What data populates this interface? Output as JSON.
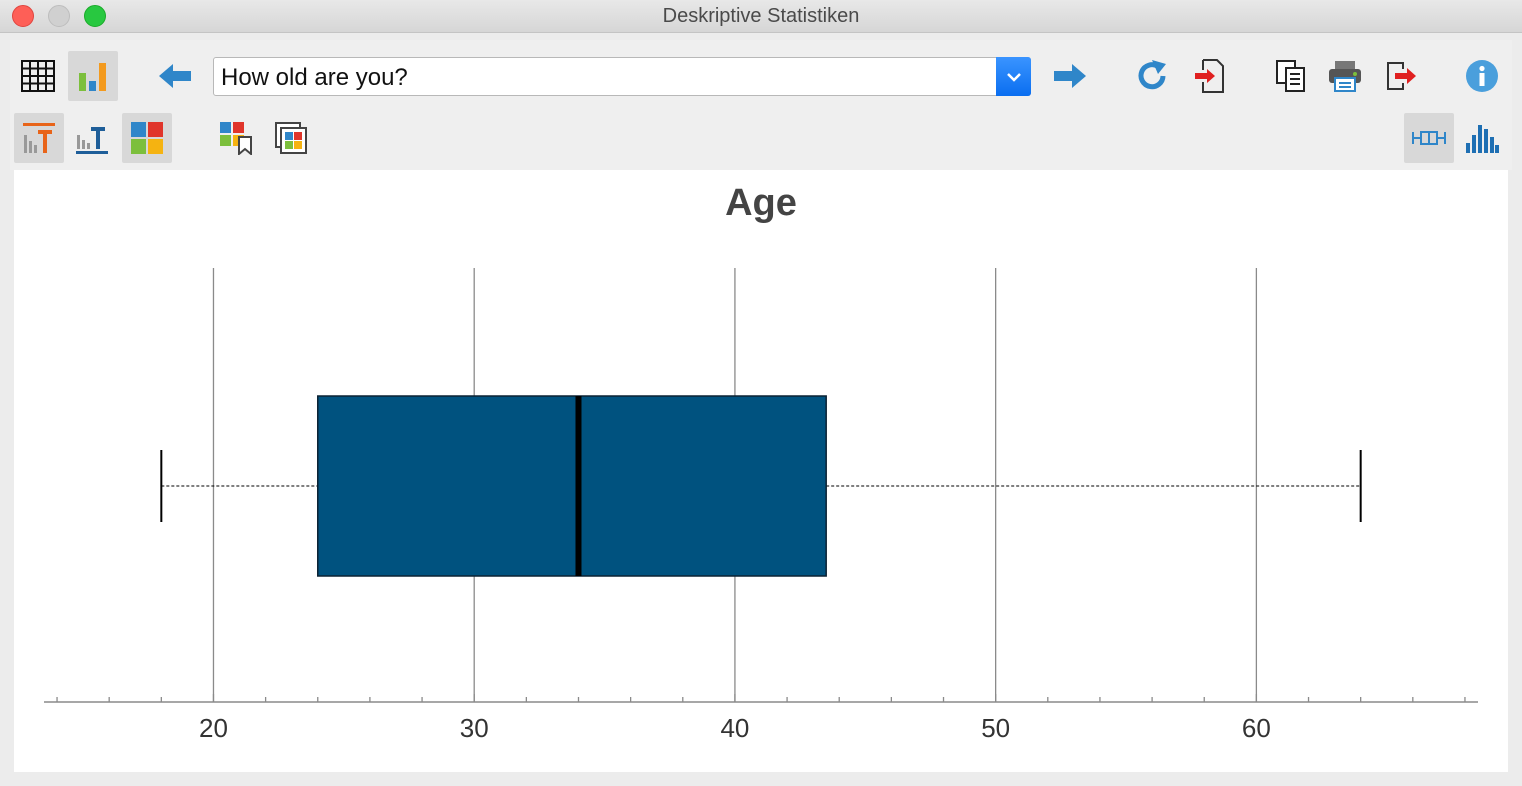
{
  "window": {
    "title": "Deskriptive Statistiken"
  },
  "toolbar": {
    "question_select": {
      "value": "How old are you?"
    },
    "icons": {
      "table_view": "table-grid-icon",
      "chart_view": "bar-chart-icon",
      "previous": "arrow-left-icon",
      "next": "arrow-right-icon",
      "refresh": "refresh-icon",
      "import": "import-icon",
      "copy": "copy-icon",
      "print": "printer-icon",
      "export": "export-icon",
      "info": "info-icon",
      "title_top": "chart-title-top-icon",
      "title_bottom": "chart-title-bottom-icon",
      "color_scheme": "color-scheme-icon",
      "color_bookmark": "color-bookmark-icon",
      "frame": "frame-icon",
      "boxplot": "boxplot-icon",
      "histogram": "histogram-icon"
    },
    "colors": {
      "accent_blue": "#2f86c9",
      "red_accent": "#e02020",
      "dropdown_blue": "#0a6ef0"
    }
  },
  "chart_data": {
    "type": "boxplot",
    "title": "Age",
    "xlim": [
      13.5,
      68.5
    ],
    "xticks": [
      20,
      30,
      40,
      50,
      60
    ],
    "minor_tick_step": 2,
    "grid": true,
    "whisker_low": 18,
    "q1": 24,
    "median": 34,
    "q3": 43.5,
    "whisker_high": 64,
    "box_color": "#00527f"
  }
}
